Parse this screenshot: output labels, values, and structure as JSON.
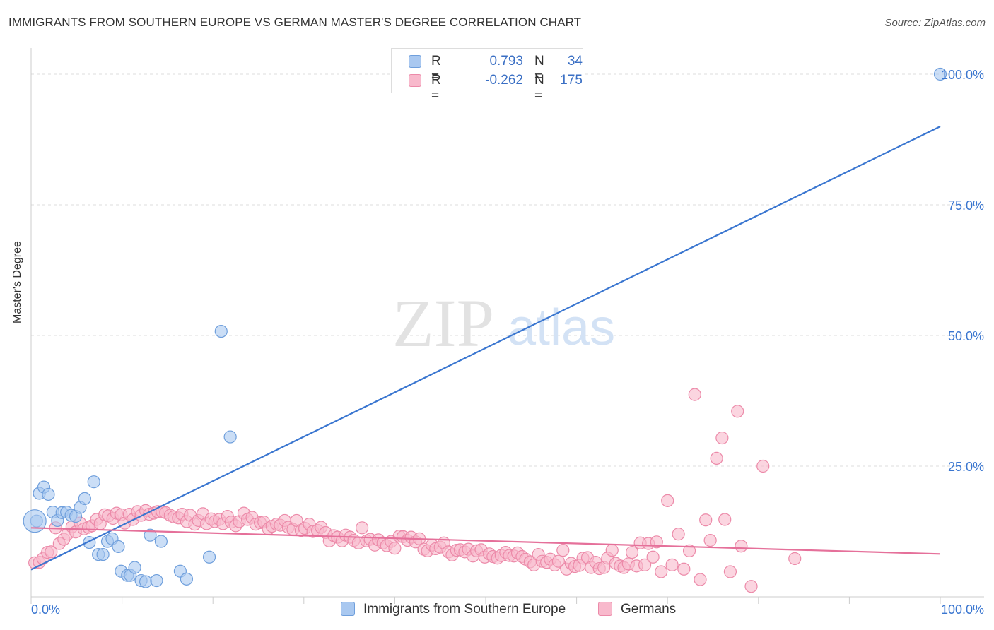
{
  "title": "IMMIGRANTS FROM SOUTHERN EUROPE VS GERMAN MASTER'S DEGREE CORRELATION CHART",
  "source": "Source: ZipAtlas.com",
  "watermark": {
    "zip": "ZIP",
    "atlas": "atlas"
  },
  "legend": {
    "r_label": "R =",
    "n_label": "N =",
    "rows": [
      {
        "r": "0.793",
        "n": "34",
        "color": "#a9c8f0"
      },
      {
        "r": "-0.262",
        "n": "175",
        "color": "#f8b9cc"
      }
    ]
  },
  "bottom_legend": [
    {
      "label": "Immigrants from Southern Europe",
      "color": "#a9c8f0"
    },
    {
      "label": "Germans",
      "color": "#f8b9cc"
    }
  ],
  "chart_data": {
    "type": "scatter",
    "title": "IMMIGRANTS FROM SOUTHERN EUROPE VS GERMAN MASTER'S DEGREE CORRELATION CHART",
    "xlabel": "",
    "ylabel": "Master's Degree",
    "xlim": [
      0,
      100
    ],
    "ylim": [
      0,
      105
    ],
    "x_tick_labels": [
      "0.0%",
      "100.0%"
    ],
    "y_ticks": [
      25,
      50,
      75,
      100
    ],
    "y_tick_labels": [
      "25.0%",
      "50.0%",
      "75.0%",
      "100.0%"
    ],
    "grid": true,
    "series": [
      {
        "name": "Immigrants from Southern Europe",
        "color": "#a9c8f0",
        "stroke": "#6f9fdc",
        "line_color": "#3a76d0",
        "trend": {
          "x": [
            0,
            100
          ],
          "y": [
            5.2,
            90.0
          ]
        },
        "points": [
          [
            0.6,
            14.5
          ],
          [
            0.9,
            19.8
          ],
          [
            1.4,
            21.0
          ],
          [
            1.9,
            19.6
          ],
          [
            2.4,
            16.2
          ],
          [
            2.9,
            14.6
          ],
          [
            3.4,
            16.1
          ],
          [
            3.9,
            16.2
          ],
          [
            4.4,
            15.6
          ],
          [
            4.9,
            15.4
          ],
          [
            5.4,
            17.1
          ],
          [
            5.9,
            18.8
          ],
          [
            6.4,
            10.4
          ],
          [
            6.9,
            22.0
          ],
          [
            7.4,
            8.1
          ],
          [
            7.9,
            8.1
          ],
          [
            8.4,
            10.6
          ],
          [
            8.9,
            11.1
          ],
          [
            9.6,
            9.6
          ],
          [
            9.9,
            4.9
          ],
          [
            10.6,
            4.1
          ],
          [
            10.9,
            4.1
          ],
          [
            11.4,
            5.6
          ],
          [
            12.1,
            3.1
          ],
          [
            12.6,
            2.9
          ],
          [
            13.1,
            11.8
          ],
          [
            13.8,
            3.1
          ],
          [
            14.3,
            10.6
          ],
          [
            16.4,
            4.9
          ],
          [
            17.1,
            3.4
          ],
          [
            19.6,
            7.6
          ],
          [
            20.9,
            50.8
          ],
          [
            21.9,
            30.6
          ],
          [
            100.0,
            100.0
          ]
        ],
        "large_point": [
          0.4,
          14.5
        ]
      },
      {
        "name": "Germans",
        "color": "#f8b9cc",
        "stroke": "#ec8aa9",
        "line_color": "#e5709a",
        "trend": {
          "x": [
            0,
            100
          ],
          "y": [
            13.2,
            8.2
          ]
        },
        "points": [
          [
            0.4,
            6.5
          ],
          [
            0.9,
            6.6
          ],
          [
            1.3,
            7.3
          ],
          [
            1.8,
            8.5
          ],
          [
            2.2,
            8.6
          ],
          [
            2.7,
            13.2
          ],
          [
            3.1,
            10.2
          ],
          [
            3.6,
            11.0
          ],
          [
            4.0,
            12.0
          ],
          [
            4.5,
            13.4
          ],
          [
            4.9,
            12.4
          ],
          [
            5.4,
            14.1
          ],
          [
            5.8,
            13.0
          ],
          [
            6.3,
            13.3
          ],
          [
            6.7,
            13.6
          ],
          [
            7.2,
            14.8
          ],
          [
            7.6,
            14.0
          ],
          [
            8.1,
            15.7
          ],
          [
            8.5,
            15.5
          ],
          [
            9.0,
            15.0
          ],
          [
            9.4,
            16.0
          ],
          [
            9.9,
            15.7
          ],
          [
            10.3,
            14.1
          ],
          [
            10.8,
            15.8
          ],
          [
            11.2,
            14.8
          ],
          [
            11.7,
            16.3
          ],
          [
            12.1,
            15.6
          ],
          [
            12.6,
            16.5
          ],
          [
            13.0,
            15.8
          ],
          [
            13.5,
            16.0
          ],
          [
            13.9,
            16.3
          ],
          [
            14.4,
            16.3
          ],
          [
            14.8,
            16.1
          ],
          [
            15.3,
            15.6
          ],
          [
            15.7,
            15.3
          ],
          [
            16.2,
            15.1
          ],
          [
            16.6,
            15.8
          ],
          [
            17.1,
            14.4
          ],
          [
            17.5,
            15.6
          ],
          [
            18.0,
            13.9
          ],
          [
            18.4,
            14.6
          ],
          [
            18.9,
            15.9
          ],
          [
            19.3,
            14.0
          ],
          [
            19.8,
            14.9
          ],
          [
            20.2,
            14.4
          ],
          [
            20.7,
            14.8
          ],
          [
            21.1,
            14.0
          ],
          [
            21.6,
            15.4
          ],
          [
            22.0,
            14.3
          ],
          [
            22.5,
            13.6
          ],
          [
            22.9,
            14.4
          ],
          [
            23.4,
            16.0
          ],
          [
            23.8,
            14.8
          ],
          [
            24.3,
            15.2
          ],
          [
            24.7,
            13.9
          ],
          [
            25.2,
            14.2
          ],
          [
            25.6,
            14.3
          ],
          [
            26.1,
            13.0
          ],
          [
            26.5,
            13.5
          ],
          [
            27.0,
            13.9
          ],
          [
            27.4,
            13.7
          ],
          [
            27.9,
            14.6
          ],
          [
            28.3,
            13.3
          ],
          [
            28.8,
            12.9
          ],
          [
            29.2,
            14.6
          ],
          [
            29.7,
            12.7
          ],
          [
            30.1,
            13.1
          ],
          [
            30.6,
            13.9
          ],
          [
            31.0,
            12.5
          ],
          [
            31.5,
            12.7
          ],
          [
            31.9,
            13.3
          ],
          [
            32.4,
            12.3
          ],
          [
            32.8,
            10.7
          ],
          [
            33.3,
            11.7
          ],
          [
            33.7,
            11.4
          ],
          [
            34.2,
            10.7
          ],
          [
            34.6,
            11.8
          ],
          [
            35.1,
            11.4
          ],
          [
            35.5,
            10.8
          ],
          [
            36.0,
            10.3
          ],
          [
            36.4,
            13.2
          ],
          [
            36.9,
            10.7
          ],
          [
            37.3,
            11.0
          ],
          [
            37.8,
            9.9
          ],
          [
            38.2,
            10.9
          ],
          [
            38.7,
            10.3
          ],
          [
            39.1,
            9.8
          ],
          [
            39.6,
            10.6
          ],
          [
            40.0,
            9.3
          ],
          [
            40.5,
            11.6
          ],
          [
            40.9,
            11.5
          ],
          [
            41.4,
            10.8
          ],
          [
            41.8,
            11.4
          ],
          [
            42.3,
            10.5
          ],
          [
            42.7,
            11.1
          ],
          [
            43.2,
            9.1
          ],
          [
            43.6,
            8.8
          ],
          [
            44.1,
            9.9
          ],
          [
            44.5,
            9.2
          ],
          [
            45.0,
            9.5
          ],
          [
            45.4,
            10.3
          ],
          [
            45.9,
            8.6
          ],
          [
            46.3,
            8.0
          ],
          [
            46.8,
            8.9
          ],
          [
            47.2,
            9.0
          ],
          [
            47.7,
            8.6
          ],
          [
            48.1,
            9.1
          ],
          [
            48.6,
            7.8
          ],
          [
            49.0,
            8.8
          ],
          [
            49.5,
            9.0
          ],
          [
            49.9,
            7.6
          ],
          [
            50.4,
            8.2
          ],
          [
            50.8,
            7.7
          ],
          [
            51.3,
            7.4
          ],
          [
            51.7,
            7.9
          ],
          [
            52.2,
            8.5
          ],
          [
            52.6,
            7.9
          ],
          [
            53.1,
            7.8
          ],
          [
            53.5,
            8.4
          ],
          [
            54.0,
            7.7
          ],
          [
            54.4,
            7.2
          ],
          [
            54.9,
            6.7
          ],
          [
            55.3,
            6.1
          ],
          [
            55.8,
            8.1
          ],
          [
            56.2,
            6.8
          ],
          [
            56.7,
            6.6
          ],
          [
            57.1,
            7.2
          ],
          [
            57.6,
            6.1
          ],
          [
            58.0,
            6.8
          ],
          [
            58.5,
            8.9
          ],
          [
            58.9,
            5.3
          ],
          [
            59.4,
            6.4
          ],
          [
            59.8,
            5.8
          ],
          [
            60.3,
            6.0
          ],
          [
            60.7,
            7.4
          ],
          [
            61.2,
            7.5
          ],
          [
            61.6,
            5.6
          ],
          [
            62.1,
            6.6
          ],
          [
            62.5,
            5.4
          ],
          [
            63.0,
            5.6
          ],
          [
            63.4,
            7.4
          ],
          [
            63.9,
            8.9
          ],
          [
            64.3,
            6.4
          ],
          [
            64.8,
            5.9
          ],
          [
            65.2,
            5.6
          ],
          [
            65.7,
            6.3
          ],
          [
            66.1,
            8.5
          ],
          [
            66.6,
            5.9
          ],
          [
            67.0,
            10.3
          ],
          [
            67.5,
            6.1
          ],
          [
            67.9,
            10.2
          ],
          [
            68.4,
            7.6
          ],
          [
            68.8,
            10.5
          ],
          [
            73.0,
            38.7
          ],
          [
            75.4,
            26.5
          ],
          [
            76.0,
            30.4
          ],
          [
            77.7,
            35.5
          ],
          [
            80.5,
            25.0
          ],
          [
            69.3,
            4.8
          ],
          [
            70.5,
            6.1
          ],
          [
            71.8,
            5.3
          ],
          [
            72.4,
            8.8
          ],
          [
            73.6,
            3.3
          ],
          [
            74.7,
            10.8
          ],
          [
            76.9,
            4.8
          ],
          [
            78.1,
            9.7
          ],
          [
            79.2,
            2.0
          ],
          [
            84.0,
            7.3
          ],
          [
            70.0,
            18.4
          ],
          [
            74.2,
            14.7
          ],
          [
            76.3,
            14.8
          ],
          [
            71.2,
            12.0
          ]
        ]
      }
    ]
  }
}
